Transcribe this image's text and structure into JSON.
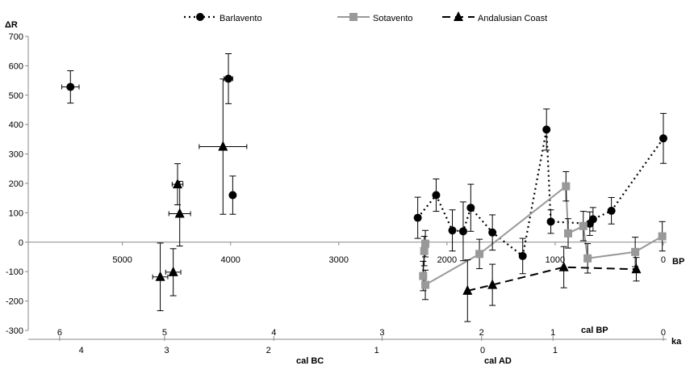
{
  "chart_data": {
    "type": "scatter",
    "ylabel": "ΔR",
    "xunit": "BP",
    "ylim": [
      -300,
      700
    ],
    "xlim": [
      5870,
      -30
    ],
    "x_reversed": true,
    "y_ticks": [
      700,
      600,
      500,
      400,
      300,
      200,
      100,
      0,
      -100,
      -200,
      -300
    ],
    "x_tick_labels": [
      "5000",
      "4000",
      "3000",
      "2000",
      "1000",
      "0"
    ],
    "x_tick_values": [
      5000,
      4000,
      3000,
      2000,
      1000,
      0
    ],
    "colors": {
      "barlavento": "#000000",
      "sotavento": "#999999",
      "andalusian": "#000000"
    },
    "legend": {
      "position": "top-center",
      "items": [
        {
          "name": "Barlavento",
          "line": "dotted",
          "marker": "circle"
        },
        {
          "name": "Sotavento",
          "line": "solid",
          "marker": "square"
        },
        {
          "name": "Andalusian Coast",
          "line": "dashed",
          "marker": "triangle"
        }
      ]
    },
    "series": [
      {
        "name": "Barlavento",
        "connected_points": [
          {
            "x": 2270,
            "y": 83,
            "err": 70
          },
          {
            "x": 2100,
            "y": 160,
            "err": 55
          },
          {
            "x": 1950,
            "y": 40,
            "err": 70
          },
          {
            "x": 1850,
            "y": 37,
            "err": 100
          },
          {
            "x": 1780,
            "y": 117,
            "err": 80
          },
          {
            "x": 1580,
            "y": 33,
            "err": 60
          },
          {
            "x": 1300,
            "y": -47,
            "err": 60
          },
          {
            "x": 1080,
            "y": 383,
            "err": 70
          },
          {
            "x": 1040,
            "y": 70,
            "err": 40
          },
          {
            "x": 680,
            "y": 63,
            "err": 40
          },
          {
            "x": 650,
            "y": 78,
            "err": 40
          },
          {
            "x": 480,
            "y": 107,
            "err": 45
          },
          {
            "x": 0,
            "y": 353,
            "err": 85
          }
        ],
        "isolated_points": [
          {
            "x": 5480,
            "y": 528,
            "err": 55,
            "xerr": 80
          },
          {
            "x": 4020,
            "y": 556,
            "err": 85,
            "xerr": 40
          },
          {
            "x": 3980,
            "y": 160,
            "err": 65,
            "xerr": 20
          }
        ]
      },
      {
        "name": "Sotavento",
        "connected_points": [
          {
            "x": 2200,
            "y": -5,
            "err": 45
          },
          {
            "x": 2210,
            "y": -30,
            "err": 50
          },
          {
            "x": 2220,
            "y": -115,
            "err": 50
          },
          {
            "x": 2200,
            "y": -145,
            "err": 50
          },
          {
            "x": 1700,
            "y": -40,
            "err": 50
          },
          {
            "x": 900,
            "y": 190,
            "err": 50
          },
          {
            "x": 880,
            "y": 30,
            "err": 50
          },
          {
            "x": 740,
            "y": 55,
            "err": 50
          },
          {
            "x": 700,
            "y": -55,
            "err": 50
          },
          {
            "x": 260,
            "y": -33,
            "err": 50
          },
          {
            "x": 10,
            "y": 20,
            "err": 50
          }
        ]
      },
      {
        "name": "Andalusian Coast",
        "connected_points": [
          {
            "x": 1810,
            "y": -165,
            "err": 105
          },
          {
            "x": 1580,
            "y": -145,
            "err": 70
          },
          {
            "x": 920,
            "y": -85,
            "err": 70
          },
          {
            "x": 250,
            "y": -92,
            "err": 40
          }
        ],
        "isolated_points": [
          {
            "x": 4650,
            "y": -118,
            "err": 115,
            "xerr": 70
          },
          {
            "x": 4530,
            "y": -102,
            "err": 80,
            "xerr": 70
          },
          {
            "x": 4490,
            "y": 197,
            "err": 70,
            "xerr": 50
          },
          {
            "x": 4470,
            "y": 97,
            "err": 110,
            "xerr": 100
          },
          {
            "x": 4070,
            "y": 325,
            "err": 230,
            "xerr": 220
          }
        ]
      }
    ],
    "secondary_axis": {
      "ka_label": "ka",
      "ka_ticks": [
        {
          "x": 5580,
          "label": "6"
        },
        {
          "x": 4610,
          "label": "5"
        },
        {
          "x": 3600,
          "label": "4"
        },
        {
          "x": 2600,
          "label": "3"
        },
        {
          "x": 1680,
          "label": "2"
        },
        {
          "x": 1020,
          "label": "1"
        },
        {
          "x": 0,
          "label": "0"
        }
      ],
      "cal_ticks": [
        {
          "x": 5380,
          "label": "4"
        },
        {
          "x": 4590,
          "label": "3"
        },
        {
          "x": 3650,
          "label": "2"
        },
        {
          "x": 2650,
          "label": "1"
        },
        {
          "x": 1670,
          "label": "0"
        },
        {
          "x": 1000,
          "label": "1"
        }
      ],
      "labels": {
        "cal_bp": "cal BP",
        "cal_bc": "cal BC",
        "cal_ad": "cal AD"
      }
    }
  }
}
